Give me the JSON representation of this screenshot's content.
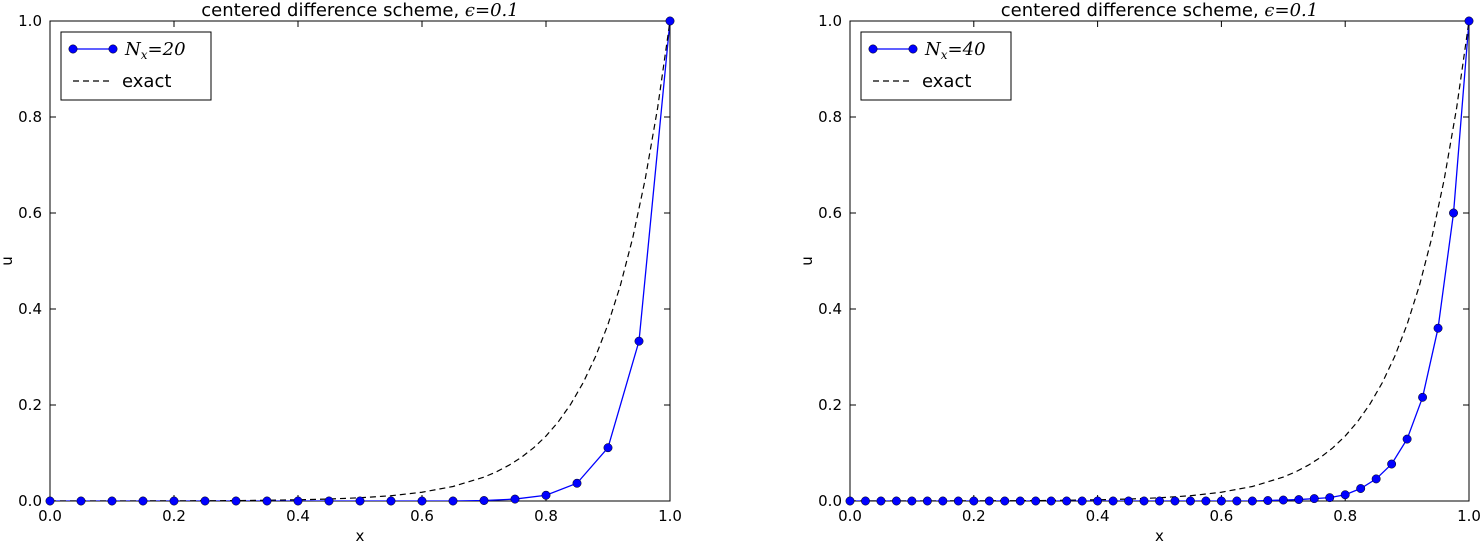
{
  "chart_data": [
    {
      "type": "line",
      "title": "centered difference scheme, ",
      "title_math": "ϵ=0.1",
      "xlabel": "x",
      "ylabel": "u",
      "xlim": [
        0.0,
        1.0
      ],
      "ylim": [
        0.0,
        1.0
      ],
      "xticks": [
        "0.0",
        "0.2",
        "0.4",
        "0.6",
        "0.8",
        "1.0"
      ],
      "yticks": [
        "0.0",
        "0.2",
        "0.4",
        "0.6",
        "0.8",
        "1.0"
      ],
      "grid": false,
      "legend_position": "top-left",
      "legend": [
        {
          "label": "N",
          "sub": "x",
          "eq": "=20"
        },
        {
          "label": "exact"
        }
      ],
      "series": [
        {
          "style": "line-marker",
          "color": "#0000ff",
          "x": [
            0.0,
            0.05,
            0.1,
            0.15,
            0.2,
            0.25,
            0.3,
            0.35,
            0.4,
            0.45,
            0.5,
            0.55,
            0.6,
            0.65,
            0.7,
            0.75,
            0.8,
            0.85,
            0.9,
            0.95,
            1.0
          ],
          "y": [
            0.0,
            0.0,
            0.0,
            0.0,
            0.0,
            0.0,
            0.0,
            0.0,
            0.0,
            0.0,
            0.0,
            0.0,
            0.0,
            0.0,
            0.001,
            0.004,
            0.012,
            0.037,
            0.111,
            0.333,
            1.0
          ]
        },
        {
          "style": "dashed",
          "color": "#000000",
          "epsilon": 0.1,
          "x": [
            0.0,
            0.1,
            0.2,
            0.3,
            0.4,
            0.45,
            0.5,
            0.55,
            0.6,
            0.65,
            0.7,
            0.72,
            0.74,
            0.76,
            0.78,
            0.8,
            0.82,
            0.84,
            0.86,
            0.88,
            0.9,
            0.92,
            0.94,
            0.96,
            0.98,
            1.0
          ],
          "y": [
            0.0,
            0.0001,
            0.0003,
            0.0008,
            0.0025,
            0.0041,
            0.0067,
            0.011,
            0.0183,
            0.0302,
            0.0498,
            0.0608,
            0.0743,
            0.0907,
            0.1108,
            0.1353,
            0.1653,
            0.2019,
            0.2466,
            0.3012,
            0.3679,
            0.4493,
            0.5488,
            0.6703,
            0.8187,
            1.0
          ]
        }
      ]
    },
    {
      "type": "line",
      "title": "centered difference scheme, ",
      "title_math": "ϵ=0.1",
      "xlabel": "x",
      "ylabel": "u",
      "xlim": [
        0.0,
        1.0
      ],
      "ylim": [
        0.0,
        1.0
      ],
      "xticks": [
        "0.0",
        "0.2",
        "0.4",
        "0.6",
        "0.8",
        "1.0"
      ],
      "yticks": [
        "0.0",
        "0.2",
        "0.4",
        "0.6",
        "0.8",
        "1.0"
      ],
      "grid": false,
      "legend_position": "top-left",
      "legend": [
        {
          "label": "N",
          "sub": "x",
          "eq": "=40"
        },
        {
          "label": "exact"
        }
      ],
      "series": [
        {
          "style": "line-marker",
          "color": "#0000ff",
          "x": [
            0.0,
            0.025,
            0.05,
            0.075,
            0.1,
            0.125,
            0.15,
            0.175,
            0.2,
            0.225,
            0.25,
            0.275,
            0.3,
            0.325,
            0.35,
            0.375,
            0.4,
            0.425,
            0.45,
            0.475,
            0.5,
            0.525,
            0.55,
            0.575,
            0.6,
            0.625,
            0.65,
            0.675,
            0.7,
            0.725,
            0.75,
            0.775,
            0.8,
            0.825,
            0.85,
            0.875,
            0.9,
            0.925,
            0.95,
            0.975,
            1.0
          ],
          "y": [
            0.0,
            0.0,
            0.0,
            0.0,
            0.0,
            0.0,
            0.0,
            0.0,
            0.0,
            0.0,
            0.0,
            0.0,
            0.0,
            0.0,
            0.0,
            0.0,
            0.0,
            0.0,
            0.0,
            0.0,
            0.0,
            0.0,
            0.0,
            0.0,
            0.0,
            0.0,
            0.0,
            0.001,
            0.002,
            0.003,
            0.005,
            0.007,
            0.013,
            0.026,
            0.046,
            0.077,
            0.129,
            0.216,
            0.36,
            0.6,
            1.0
          ]
        },
        {
          "style": "dashed",
          "color": "#000000",
          "epsilon": 0.1,
          "x": [
            0.0,
            0.1,
            0.2,
            0.3,
            0.4,
            0.45,
            0.5,
            0.55,
            0.6,
            0.65,
            0.7,
            0.72,
            0.74,
            0.76,
            0.78,
            0.8,
            0.82,
            0.84,
            0.86,
            0.88,
            0.9,
            0.92,
            0.94,
            0.96,
            0.98,
            1.0
          ],
          "y": [
            0.0,
            0.0001,
            0.0003,
            0.0008,
            0.0025,
            0.0041,
            0.0067,
            0.011,
            0.0183,
            0.0302,
            0.0498,
            0.0608,
            0.0743,
            0.0907,
            0.1108,
            0.1353,
            0.1653,
            0.2019,
            0.2466,
            0.3012,
            0.3679,
            0.4493,
            0.5488,
            0.6703,
            0.8187,
            1.0
          ]
        }
      ]
    }
  ]
}
